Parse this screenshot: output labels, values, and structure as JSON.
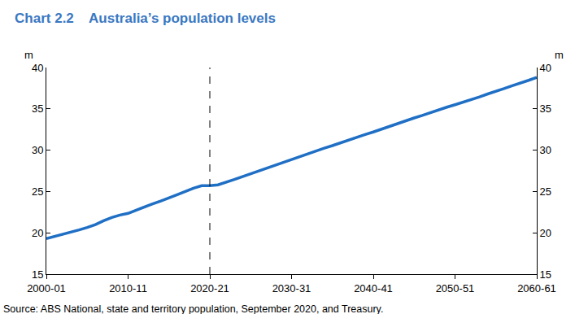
{
  "chart_data": {
    "type": "line",
    "title": "Chart 2.2    Australia’s population levels",
    "y_label": "m",
    "source": "Source: ABS National, state and territory population, September 2020, and Treasury.",
    "categories": [
      "2000-01",
      null,
      null,
      null,
      null,
      null,
      null,
      null,
      null,
      null,
      "2010-11",
      null,
      null,
      null,
      null,
      null,
      null,
      null,
      null,
      null,
      "2020-21",
      null,
      null,
      null,
      null,
      null,
      null,
      null,
      null,
      null,
      "2030-31",
      null,
      null,
      null,
      null,
      null,
      null,
      null,
      null,
      null,
      "2040-41",
      null,
      null,
      null,
      null,
      null,
      null,
      null,
      null,
      null,
      "2050-51",
      null,
      null,
      null,
      null,
      null,
      null,
      null,
      null,
      null,
      "2060-61"
    ],
    "values": [
      19.3,
      19.55,
      19.8,
      20.05,
      20.35,
      20.65,
      21.0,
      21.45,
      21.85,
      22.15,
      22.35,
      22.75,
      23.15,
      23.5,
      23.85,
      24.2,
      24.6,
      25.0,
      25.4,
      25.7,
      25.7,
      25.8,
      26.1,
      26.45,
      26.8,
      27.15,
      27.5,
      27.85,
      28.2,
      28.55,
      28.9,
      29.25,
      29.6,
      29.9,
      30.25,
      30.55,
      30.9,
      31.2,
      31.55,
      31.9,
      32.2,
      32.55,
      32.9,
      33.2,
      33.55,
      33.9,
      34.2,
      34.55,
      34.9,
      35.2,
      35.5,
      35.8,
      36.15,
      36.45,
      36.8,
      37.1,
      37.45,
      37.8,
      38.1,
      38.45,
      38.8
    ],
    "color": "#1f6fc5",
    "ylim": [
      15,
      40
    ],
    "yticks": [
      15,
      20,
      25,
      30,
      35,
      40
    ],
    "y2lim": [
      15,
      40
    ],
    "y2ticks": [
      15,
      20,
      25,
      30,
      35,
      40
    ],
    "vline": {
      "x": "2020-21",
      "line_style": "dashed"
    },
    "grid": false
  }
}
